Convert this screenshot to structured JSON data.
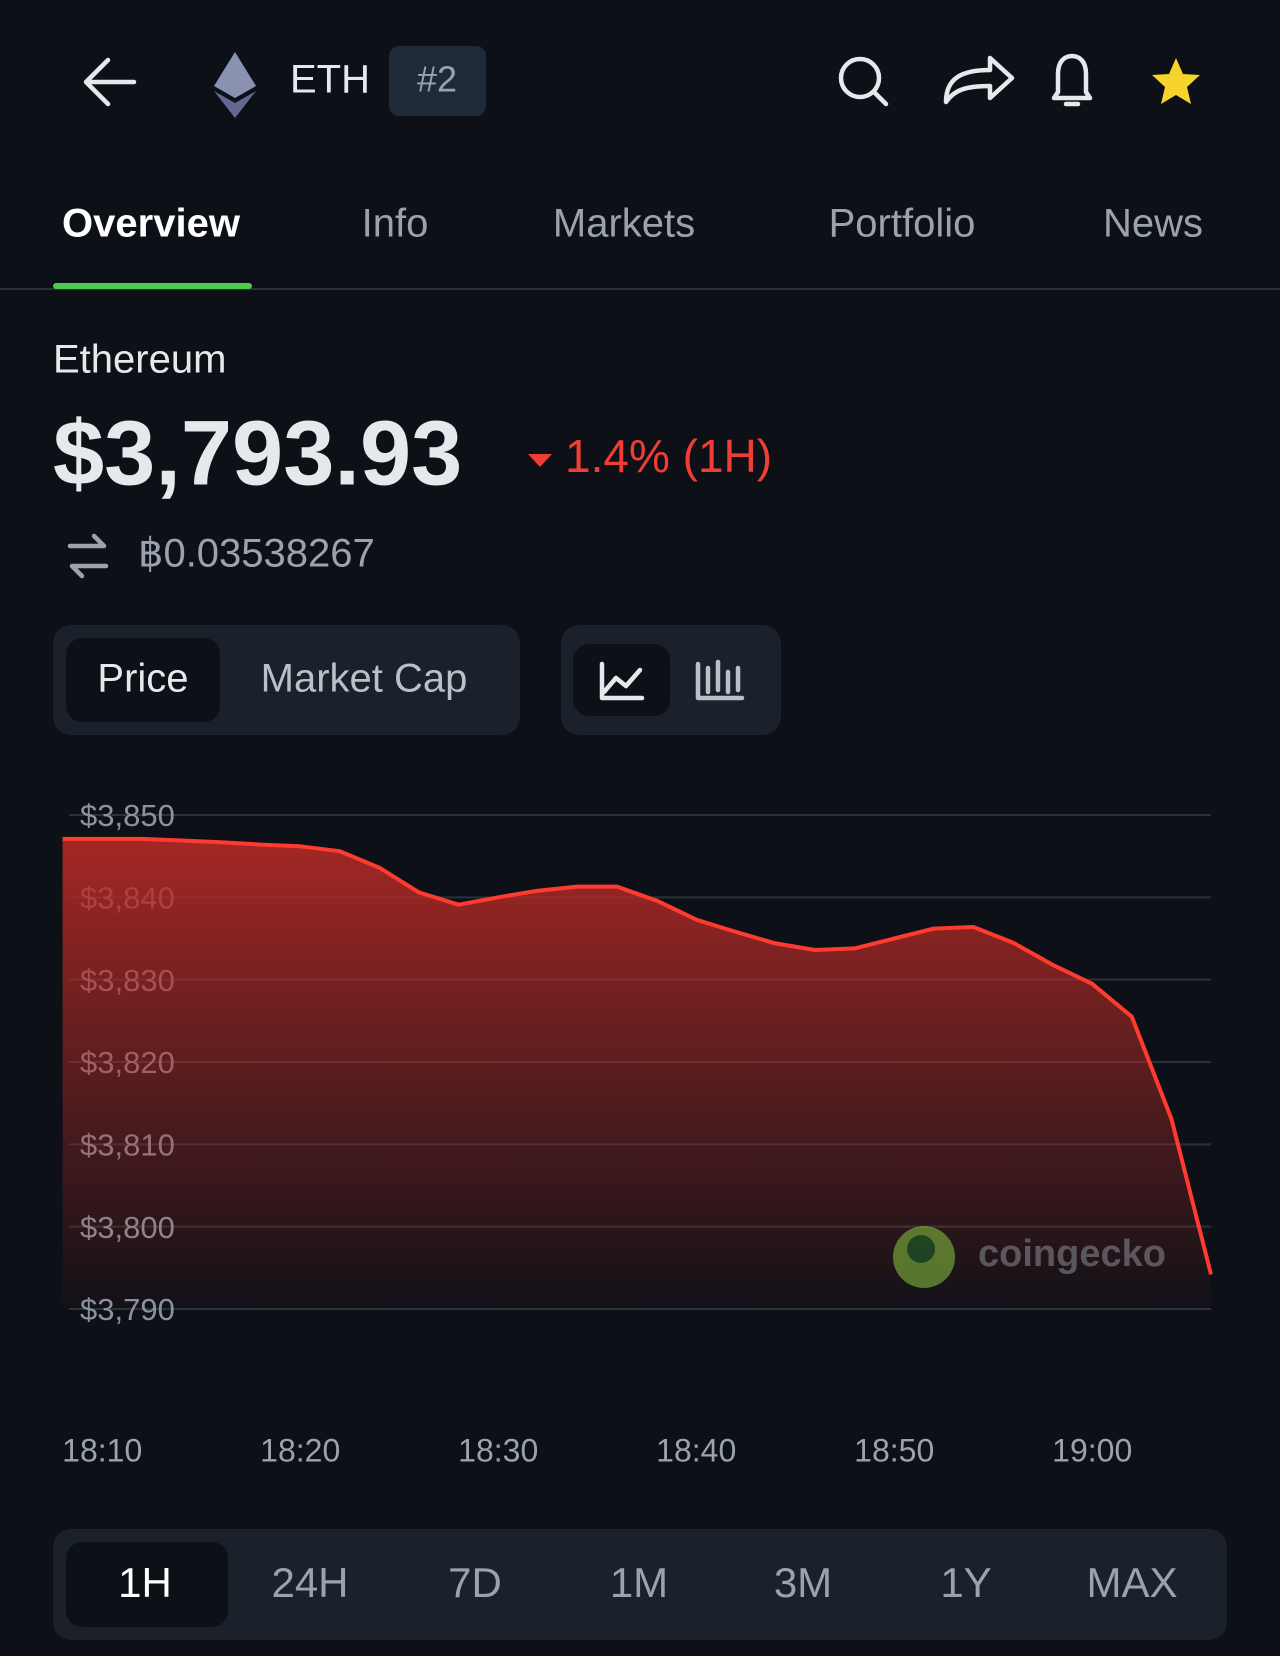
{
  "header": {
    "symbol": "ETH",
    "rank": "#2"
  },
  "tabs": [
    "Overview",
    "Info",
    "Markets",
    "Portfolio",
    "News"
  ],
  "coin": {
    "name": "Ethereum",
    "price": "$3,793.93",
    "change": "1.4% (1H)",
    "btc_price": "฿0.03538267"
  },
  "chart_toggle": [
    "Price",
    "Market Cap"
  ],
  "ranges": [
    "1H",
    "24H",
    "7D",
    "1M",
    "3M",
    "1Y",
    "MAX"
  ],
  "watermark": "coingecko",
  "chart_data": {
    "type": "area",
    "color": "#ff3b30",
    "x": [
      "18:08",
      "18:10",
      "18:12",
      "18:14",
      "18:16",
      "18:18",
      "18:20",
      "18:22",
      "18:24",
      "18:26",
      "18:28",
      "18:30",
      "18:32",
      "18:34",
      "18:36",
      "18:38",
      "18:40",
      "18:42",
      "18:44",
      "18:46",
      "18:48",
      "18:50",
      "18:52",
      "18:54",
      "18:56",
      "18:58",
      "19:00",
      "19:02",
      "19:04",
      "19:06"
    ],
    "values": [
      3847.1,
      3847.1,
      3847.1,
      3846.9,
      3846.7,
      3846.4,
      3846.2,
      3845.6,
      3843.6,
      3840.6,
      3839.1,
      3840.0,
      3840.8,
      3841.3,
      3841.3,
      3839.6,
      3837.3,
      3835.8,
      3834.4,
      3833.6,
      3833.8,
      3835.0,
      3836.2,
      3836.4,
      3834.5,
      3831.8,
      3829.5,
      3825.5,
      3813.1,
      3794.2
    ],
    "xlim": [
      "18:08",
      "19:06"
    ],
    "xticks": [
      "18:10",
      "18:20",
      "18:30",
      "18:40",
      "18:50",
      "19:00"
    ],
    "ylim": [
      3790,
      3850
    ],
    "yticks": [
      {
        "value": 3790,
        "label": "$3,790"
      },
      {
        "value": 3800,
        "label": "$3,800"
      },
      {
        "value": 3810,
        "label": "$3,810"
      },
      {
        "value": 3820,
        "label": "$3,820"
      },
      {
        "value": 3830,
        "label": "$3,830"
      },
      {
        "value": 3840,
        "label": "$3,840"
      },
      {
        "value": 3850,
        "label": "$3,850"
      }
    ],
    "grid": true
  }
}
